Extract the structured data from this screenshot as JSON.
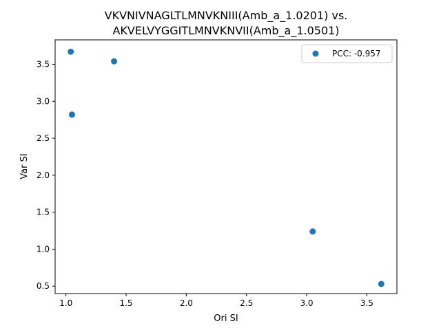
{
  "chart_data": {
    "type": "scatter",
    "title_lines": [
      "VKVNIVNAGLTLMNVKNIII(Amb_a_1.0201) vs.",
      "AKVELVYGGITLMNVKNVII(Amb_a_1.0501)"
    ],
    "xlabel": "Ori SI",
    "ylabel": "Var SI",
    "xlim": [
      0.91,
      3.75
    ],
    "ylim": [
      0.4,
      3.83
    ],
    "xticks": [
      1.0,
      1.5,
      2.0,
      2.5,
      3.0,
      3.5
    ],
    "yticks": [
      0.5,
      1.0,
      1.5,
      2.0,
      2.5,
      3.0,
      3.5
    ],
    "tick_labels_x": [
      "1.0",
      "1.5",
      "2.0",
      "2.5",
      "3.0",
      "3.5"
    ],
    "tick_labels_y": [
      "0.5",
      "1.0",
      "1.5",
      "2.0",
      "2.5",
      "3.0",
      "3.5"
    ],
    "series": [
      {
        "name": "PCC: -0.957",
        "color": "#1f77b4",
        "points": [
          {
            "x": 1.04,
            "y": 3.67
          },
          {
            "x": 1.4,
            "y": 3.54
          },
          {
            "x": 1.05,
            "y": 2.82
          },
          {
            "x": 3.05,
            "y": 1.24
          },
          {
            "x": 3.62,
            "y": 0.53
          }
        ]
      }
    ],
    "legend": {
      "placement": "top-right",
      "label": "PCC: -0.957"
    },
    "grid": false
  }
}
